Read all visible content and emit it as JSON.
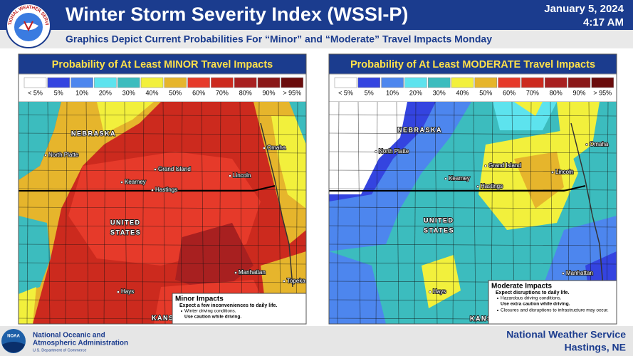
{
  "header": {
    "title": "Winter Storm Severity Index (WSSI-P)",
    "date": "January 5, 2024",
    "time": "4:17 AM",
    "subtitle": "Graphics Depict Current Probabilities For “Minor” and “Moderate” Travel Impacts Monday",
    "logo_text": "NATIONAL WEATHER SERVICE"
  },
  "legend": [
    {
      "label": "< 5%",
      "color": "#ffffff"
    },
    {
      "label": "5%",
      "color": "#3444e0"
    },
    {
      "label": "10%",
      "color": "#4d86ee"
    },
    {
      "label": "20%",
      "color": "#5de3ee"
    },
    {
      "label": "30%",
      "color": "#3cbcbe"
    },
    {
      "label": "40%",
      "color": "#f2f03c"
    },
    {
      "label": "50%",
      "color": "#e6b52c"
    },
    {
      "label": "60%",
      "color": "#e63a2a"
    },
    {
      "label": "70%",
      "color": "#cc2a1e"
    },
    {
      "label": "80%",
      "color": "#a82020"
    },
    {
      "label": "90%",
      "color": "#8a1818"
    },
    {
      "label": "> 95%",
      "color": "#6a0c0c"
    }
  ],
  "panels": [
    {
      "title": "Probability of At Least MINOR Travel Impacts",
      "places": [
        "NEBRASKA",
        "North Platte",
        "Omaha",
        "Grand Island",
        "Lincoln",
        "Kearney",
        "Hastings",
        "UNITED",
        "STATES",
        "Manhattan",
        "Topeka",
        "Hays",
        "KANSAS"
      ],
      "impacts": {
        "title": "Minor Impacts",
        "summary": "Expect a few inconveniences to daily life.",
        "bullets": [
          {
            "text": "Winter driving conditions.",
            "emphasis": "Use caution while driving."
          }
        ]
      }
    },
    {
      "title": "Probability of At Least MODERATE Travel Impacts",
      "places": [
        "NEBRASKA",
        "North Platte",
        "Omaha",
        "Grand Island",
        "Lincoln",
        "Kearney",
        "Hastings",
        "UNITED",
        "STATES",
        "Manhattan",
        "Hays",
        "KANSAS"
      ],
      "impacts": {
        "title": "Moderate Impacts",
        "summary": "Expect disruptions to daily life.",
        "bullets": [
          {
            "text": "Hazardous driving conditions.",
            "emphasis": "Use extra caution while driving."
          },
          {
            "text": "Closures and disruptions to infrastructure may occur."
          }
        ]
      }
    }
  ],
  "footer": {
    "noaa_logo": "NOAA",
    "agency_line1": "National Oceanic and",
    "agency_line2": "Atmospheric Administration",
    "department": "U.S. Department of Commerce",
    "office": "National Weather Service",
    "location": "Hastings, NE"
  }
}
